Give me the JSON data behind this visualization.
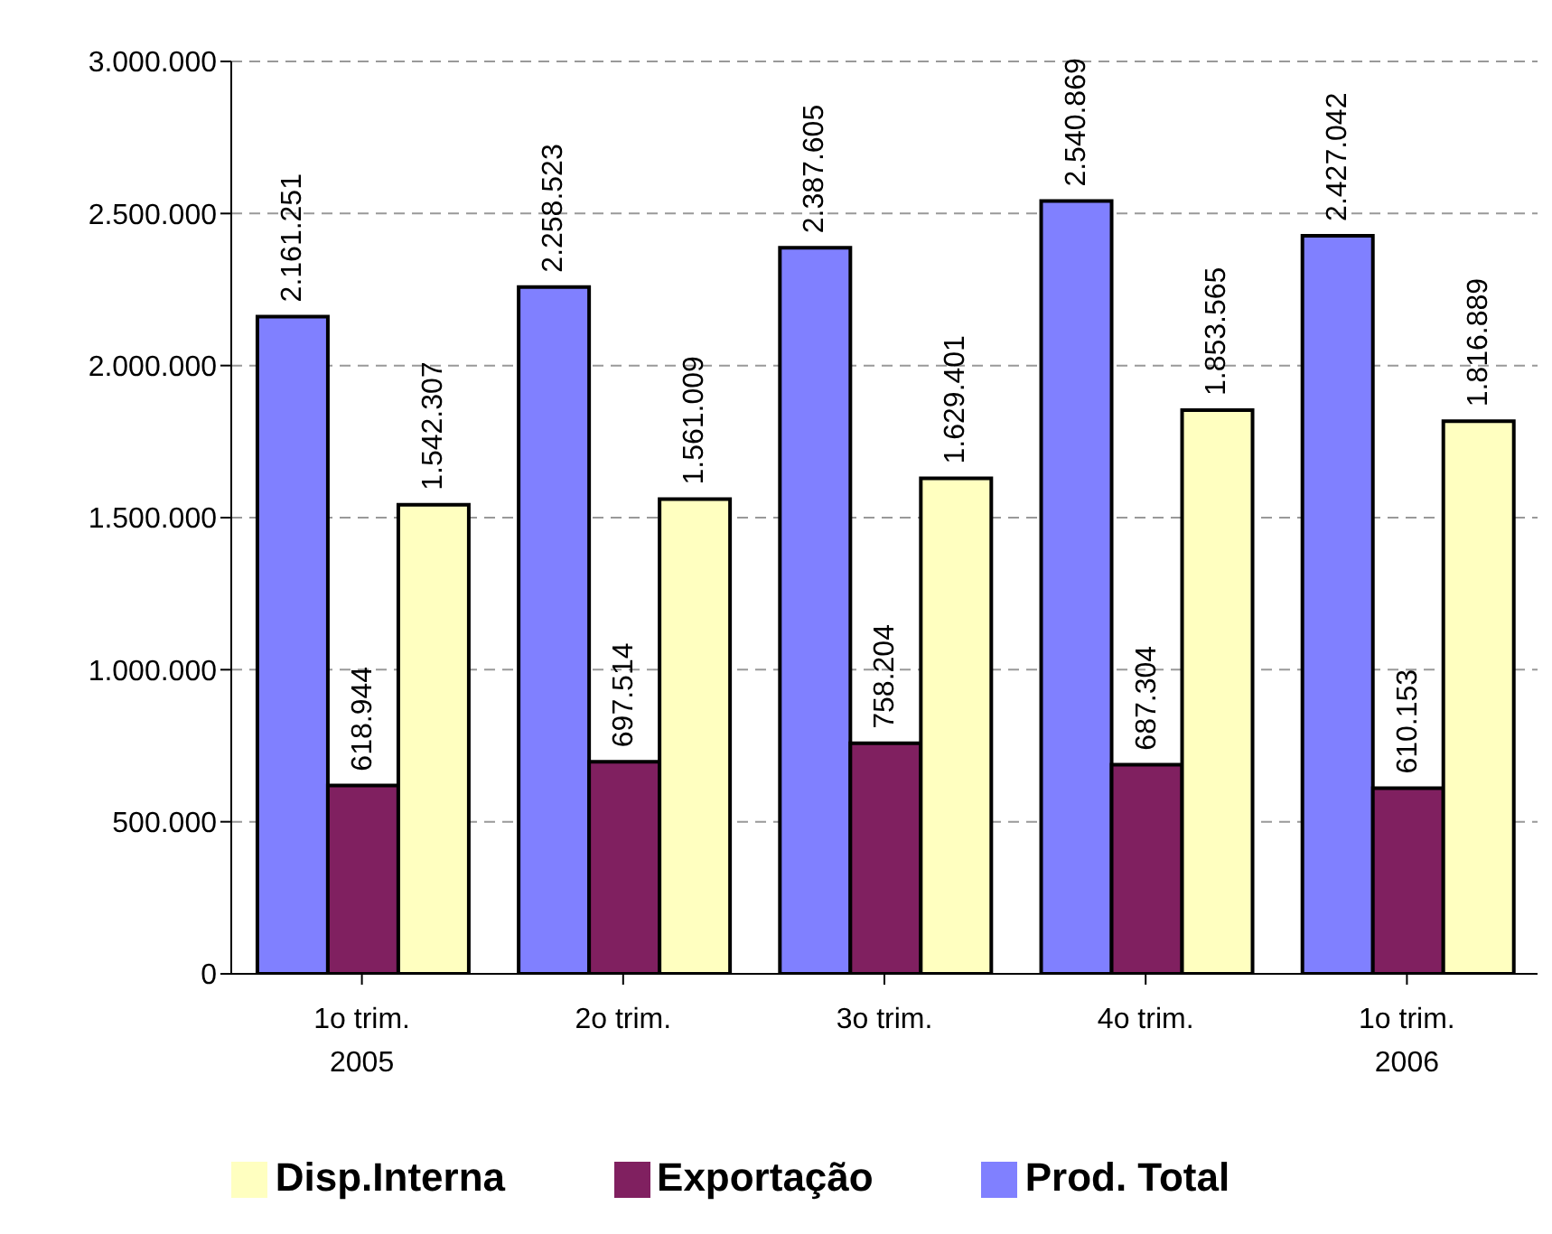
{
  "chart_data": {
    "type": "bar",
    "categories": [
      "1o trim.\n2005",
      "2o trim.",
      "3o trim.",
      "4o trim.",
      "1o trim.\n2006"
    ],
    "series": [
      {
        "name": "Prod. Total",
        "color": "#8080ff",
        "values": [
          2161251,
          2258523,
          2387605,
          2540869,
          2427042
        ],
        "value_labels": [
          "2.161.251",
          "2.258.523",
          "2.387.605",
          "2.540.869",
          "2.427.042"
        ]
      },
      {
        "name": "Exportação",
        "color": "#802060",
        "values": [
          618944,
          697514,
          758204,
          687304,
          610153
        ],
        "value_labels": [
          "618.944",
          "697.514",
          "758.204",
          "687.304",
          "610.153"
        ]
      },
      {
        "name": "Disp.Interna",
        "color": "#ffffc0",
        "values": [
          1542307,
          1561009,
          1629401,
          1853565,
          1816889
        ],
        "value_labels": [
          "1.542.307",
          "1.561.009",
          "1.629.401",
          "1.853.565",
          "1.816.889"
        ]
      }
    ],
    "ylim": [
      0,
      3000000
    ],
    "yticks": [
      {
        "value": 0,
        "label": "0"
      },
      {
        "value": 500000,
        "label": "500.000"
      },
      {
        "value": 1000000,
        "label": "1.000.000"
      },
      {
        "value": 1500000,
        "label": "1.500.000"
      },
      {
        "value": 2000000,
        "label": "2.000.000"
      },
      {
        "value": 2500000,
        "label": "2.500.000"
      },
      {
        "value": 3000000,
        "label": "3.000.000"
      }
    ],
    "grid": "y",
    "legend": "bottom"
  }
}
